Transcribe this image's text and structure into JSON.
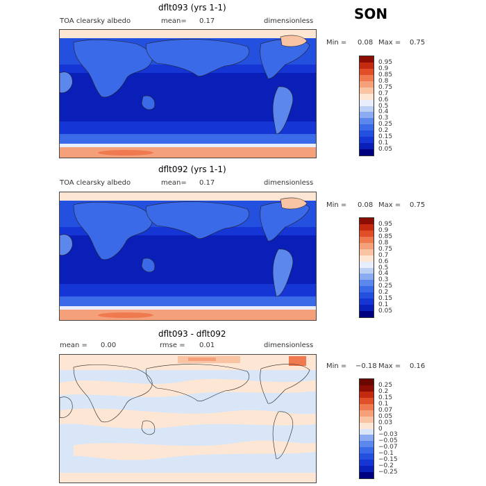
{
  "season": "SON",
  "chart_data": [
    {
      "type": "heatmap",
      "title": "dflt093 (yrs 1-1)",
      "left_label": "TOA clearsky albedo",
      "stat_label": "mean=",
      "stat_value": "0.17",
      "units": "dimensionless",
      "min_label": "Min =",
      "min_value": "0.08",
      "max_label": "Max =",
      "max_value": "0.75",
      "colorbar_levels": [
        "0.05",
        "0.1",
        "0.15",
        "0.2",
        "0.25",
        "0.3",
        "0.4",
        "0.5",
        "0.6",
        "0.7",
        "0.75",
        "0.8",
        "0.85",
        "0.9",
        "0.95"
      ],
      "colorbar_colors": [
        "#00007f",
        "#0a1fb8",
        "#1535d4",
        "#2450e0",
        "#3a6ae8",
        "#5c88ee",
        "#8aaaf2",
        "#bcd0f6",
        "#e8eefb",
        "#fde6d4",
        "#f8c4a4",
        "#f4a07a",
        "#ef7a50",
        "#e04f28",
        "#c42a10",
        "#8c0d02"
      ]
    },
    {
      "type": "heatmap",
      "title": "dflt092 (yrs 1-1)",
      "left_label": "TOA clearsky albedo",
      "stat_label": "mean=",
      "stat_value": "0.17",
      "units": "dimensionless",
      "min_label": "Min =",
      "min_value": "0.08",
      "max_label": "Max =",
      "max_value": "0.75",
      "colorbar_levels": [
        "0.05",
        "0.1",
        "0.15",
        "0.2",
        "0.25",
        "0.3",
        "0.4",
        "0.5",
        "0.6",
        "0.7",
        "0.75",
        "0.8",
        "0.85",
        "0.9",
        "0.95"
      ],
      "colorbar_colors": [
        "#00007f",
        "#0a1fb8",
        "#1535d4",
        "#2450e0",
        "#3a6ae8",
        "#5c88ee",
        "#8aaaf2",
        "#bcd0f6",
        "#e8eefb",
        "#fde6d4",
        "#f8c4a4",
        "#f4a07a",
        "#ef7a50",
        "#e04f28",
        "#c42a10",
        "#8c0d02"
      ]
    },
    {
      "type": "heatmap",
      "title": "dflt093 - dflt092",
      "left_label": "mean =",
      "left_value": "0.00",
      "stat_label": "rmse =",
      "stat_value": "0.01",
      "units": "dimensionless",
      "min_label": "Min =",
      "min_value": "−0.18",
      "max_label": "Max =",
      "max_value": "0.16",
      "colorbar_levels": [
        "−0.25",
        "−0.2",
        "−0.15",
        "−0.1",
        "−0.07",
        "−0.05",
        "−0.03",
        "0",
        "0.03",
        "0.05",
        "0.07",
        "0.1",
        "0.15",
        "0.2",
        "0.25"
      ],
      "colorbar_colors": [
        "#00007f",
        "#0a1fb8",
        "#1535d4",
        "#2450e0",
        "#3a6ae8",
        "#5c88ee",
        "#8aaaf2",
        "#d8e6f8",
        "#fde6d4",
        "#f8c4a4",
        "#f4a07a",
        "#ef7a50",
        "#e04f28",
        "#c42a10",
        "#8c0d02",
        "#6a0800"
      ]
    }
  ]
}
